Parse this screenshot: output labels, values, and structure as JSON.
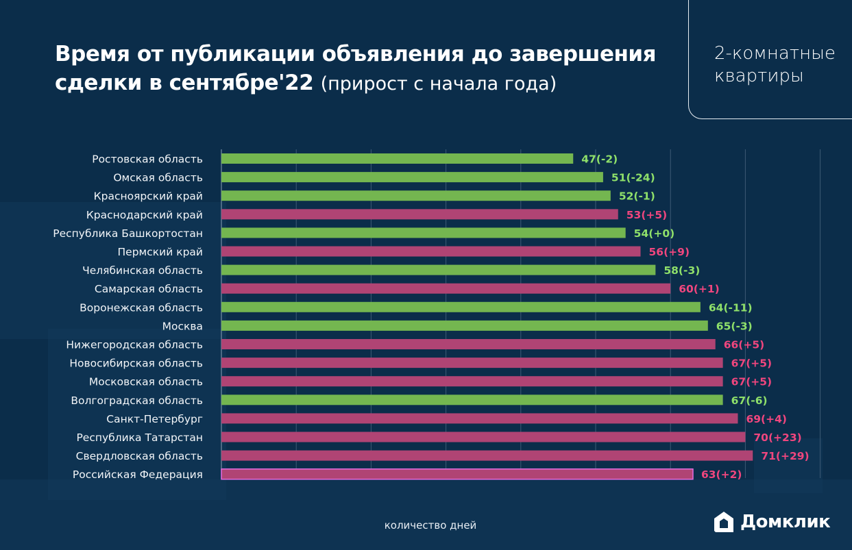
{
  "header": {
    "title_bold": "Время от публикации объявления до завершения сделки в сентябре'22",
    "title_light": "(прирост с начала года)",
    "category_line1": "2-комнатные",
    "category_line2": "квартиры"
  },
  "brand": {
    "name": "Домклик",
    "logo_icon": "house-icon"
  },
  "colors": {
    "background": "#0b2d4a",
    "decrease": "#74b650",
    "increase": "#b04474",
    "decrease_label": "#8fe06a",
    "increase_label": "#f0467e",
    "total_border": "#e36ce0",
    "grid": "#3d5a75"
  },
  "chart_data": {
    "type": "bar",
    "orientation": "horizontal",
    "title": "Время от публикации объявления до завершения сделки в сентябре'22 (прирост с начала года)",
    "xlabel": "количество дней",
    "ylabel": "",
    "xlim": [
      0,
      80
    ],
    "grid": true,
    "grid_step": 10,
    "legend": "none",
    "categories": [
      "Ростовская область",
      "Омская область",
      "Красноярский край",
      "Краснодарский край",
      "Республика Башкортостан",
      "Пермский край",
      "Челябинская область",
      "Самарская область",
      "Воронежская область",
      "Москва",
      "Нижегородская область",
      "Новосибирская область",
      "Московская область",
      "Волгоградская область",
      "Санкт-Петербург",
      "Республика Татарстан",
      "Свердловская область",
      "Российская Федерация"
    ],
    "series": [
      {
        "name": "days",
        "values": [
          47,
          51,
          52,
          53,
          54,
          56,
          58,
          60,
          64,
          65,
          66,
          67,
          67,
          67,
          69,
          70,
          71,
          63
        ]
      },
      {
        "name": "change_since_year_start",
        "values": [
          -2,
          -24,
          -1,
          5,
          0,
          9,
          -3,
          1,
          -11,
          -3,
          5,
          5,
          5,
          -6,
          4,
          23,
          29,
          2
        ]
      }
    ],
    "data_labels": [
      "47(-2)",
      "51(-24)",
      "52(-1)",
      "53(+5)",
      "54(+0)",
      "56(+9)",
      "58(-3)",
      "60(+1)",
      "64(-11)",
      "65(-3)",
      "66(+5)",
      "67(+5)",
      "67(+5)",
      "67(-6)",
      "69(+4)",
      "70(+23)",
      "71(+29)",
      "63(+2)"
    ],
    "highlight_last_as_total": true
  }
}
